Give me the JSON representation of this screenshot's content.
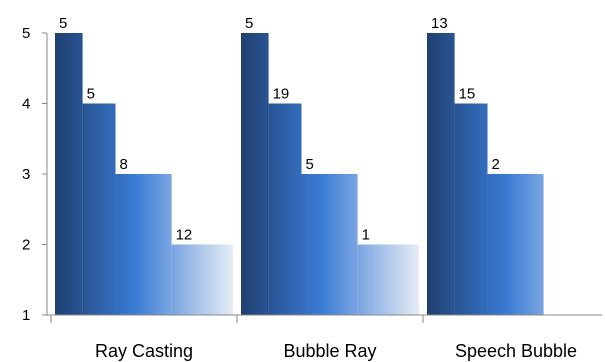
{
  "chart_data": {
    "type": "bar",
    "subtype": "stepped-width-gradient-bars",
    "categories": [
      "Ray Casting",
      "Bubble Ray",
      "Speech Bubble"
    ],
    "groups": [
      {
        "category": "Ray Casting",
        "segments": [
          {
            "y": 5,
            "label": "5"
          },
          {
            "y": 4,
            "label": "5"
          },
          {
            "y": 3,
            "label": "8"
          },
          {
            "y": 2,
            "label": "12"
          }
        ]
      },
      {
        "category": "Bubble Ray",
        "segments": [
          {
            "y": 5,
            "label": "5"
          },
          {
            "y": 4,
            "label": "19"
          },
          {
            "y": 3,
            "label": "5"
          },
          {
            "y": 2,
            "label": "1"
          }
        ]
      },
      {
        "category": "Speech Bubble",
        "segments": [
          {
            "y": 5,
            "label": "13"
          },
          {
            "y": 4,
            "label": "15"
          },
          {
            "y": 3,
            "label": "2"
          }
        ]
      }
    ],
    "y_ticks": [
      "1",
      "2",
      "3",
      "4",
      "5"
    ],
    "ylim": [
      1,
      5
    ],
    "grid": false,
    "legend": "none",
    "colors": {
      "dark": "#1f3f70",
      "mid": "#3a7bd5",
      "light": "#e6ecf5",
      "axis": "#888888"
    }
  }
}
